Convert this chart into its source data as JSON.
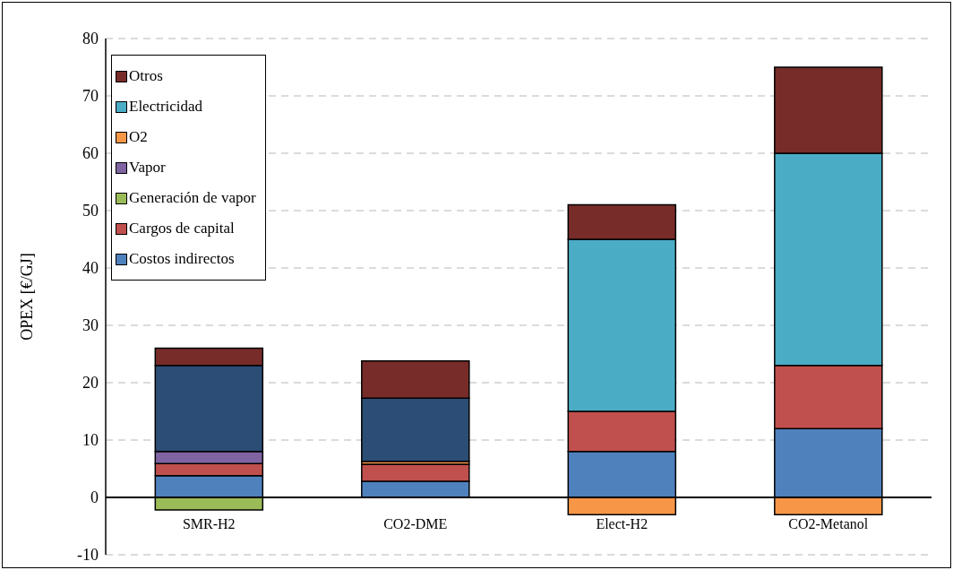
{
  "chart_data": {
    "type": "bar",
    "stacked": true,
    "ylabel": "OPEX [€/GJ]",
    "categories": [
      "SMR-H2",
      "CO2-DME",
      "Elect-H2",
      "CO2-Metanol"
    ],
    "series": [
      {
        "name": "Costos indirectos",
        "color": "#4f81bd",
        "values": [
          3.8,
          2.8,
          8,
          12
        ]
      },
      {
        "name": "Cargos de capital",
        "color": "#c0504d",
        "values": [
          2.1,
          3,
          7,
          11
        ]
      },
      {
        "name": "Generación de vapor",
        "color": "#9bbb59",
        "values": [
          -2.2,
          null,
          null,
          null
        ]
      },
      {
        "name": "Vapor",
        "color": "#8064a2",
        "values": [
          2.1,
          null,
          null,
          null
        ]
      },
      {
        "name": "O2",
        "color": "#f79646",
        "values": [
          null,
          0.5,
          -3,
          -3
        ]
      },
      {
        "color": "#2c4d75",
        "values": [
          15,
          11,
          null,
          null
        ]
      },
      {
        "name": "Electricidad",
        "color": "#4bacc6",
        "values": [
          null,
          null,
          30,
          37
        ]
      },
      {
        "name": "Otros",
        "color": "#772c2a",
        "values": [
          3,
          6.5,
          6,
          15
        ]
      }
    ],
    "ylim": [
      -10,
      80
    ],
    "yticks": [
      -10,
      0,
      10,
      20,
      30,
      40,
      50,
      60,
      70,
      80
    ],
    "grid": "y",
    "legend": "top left"
  }
}
